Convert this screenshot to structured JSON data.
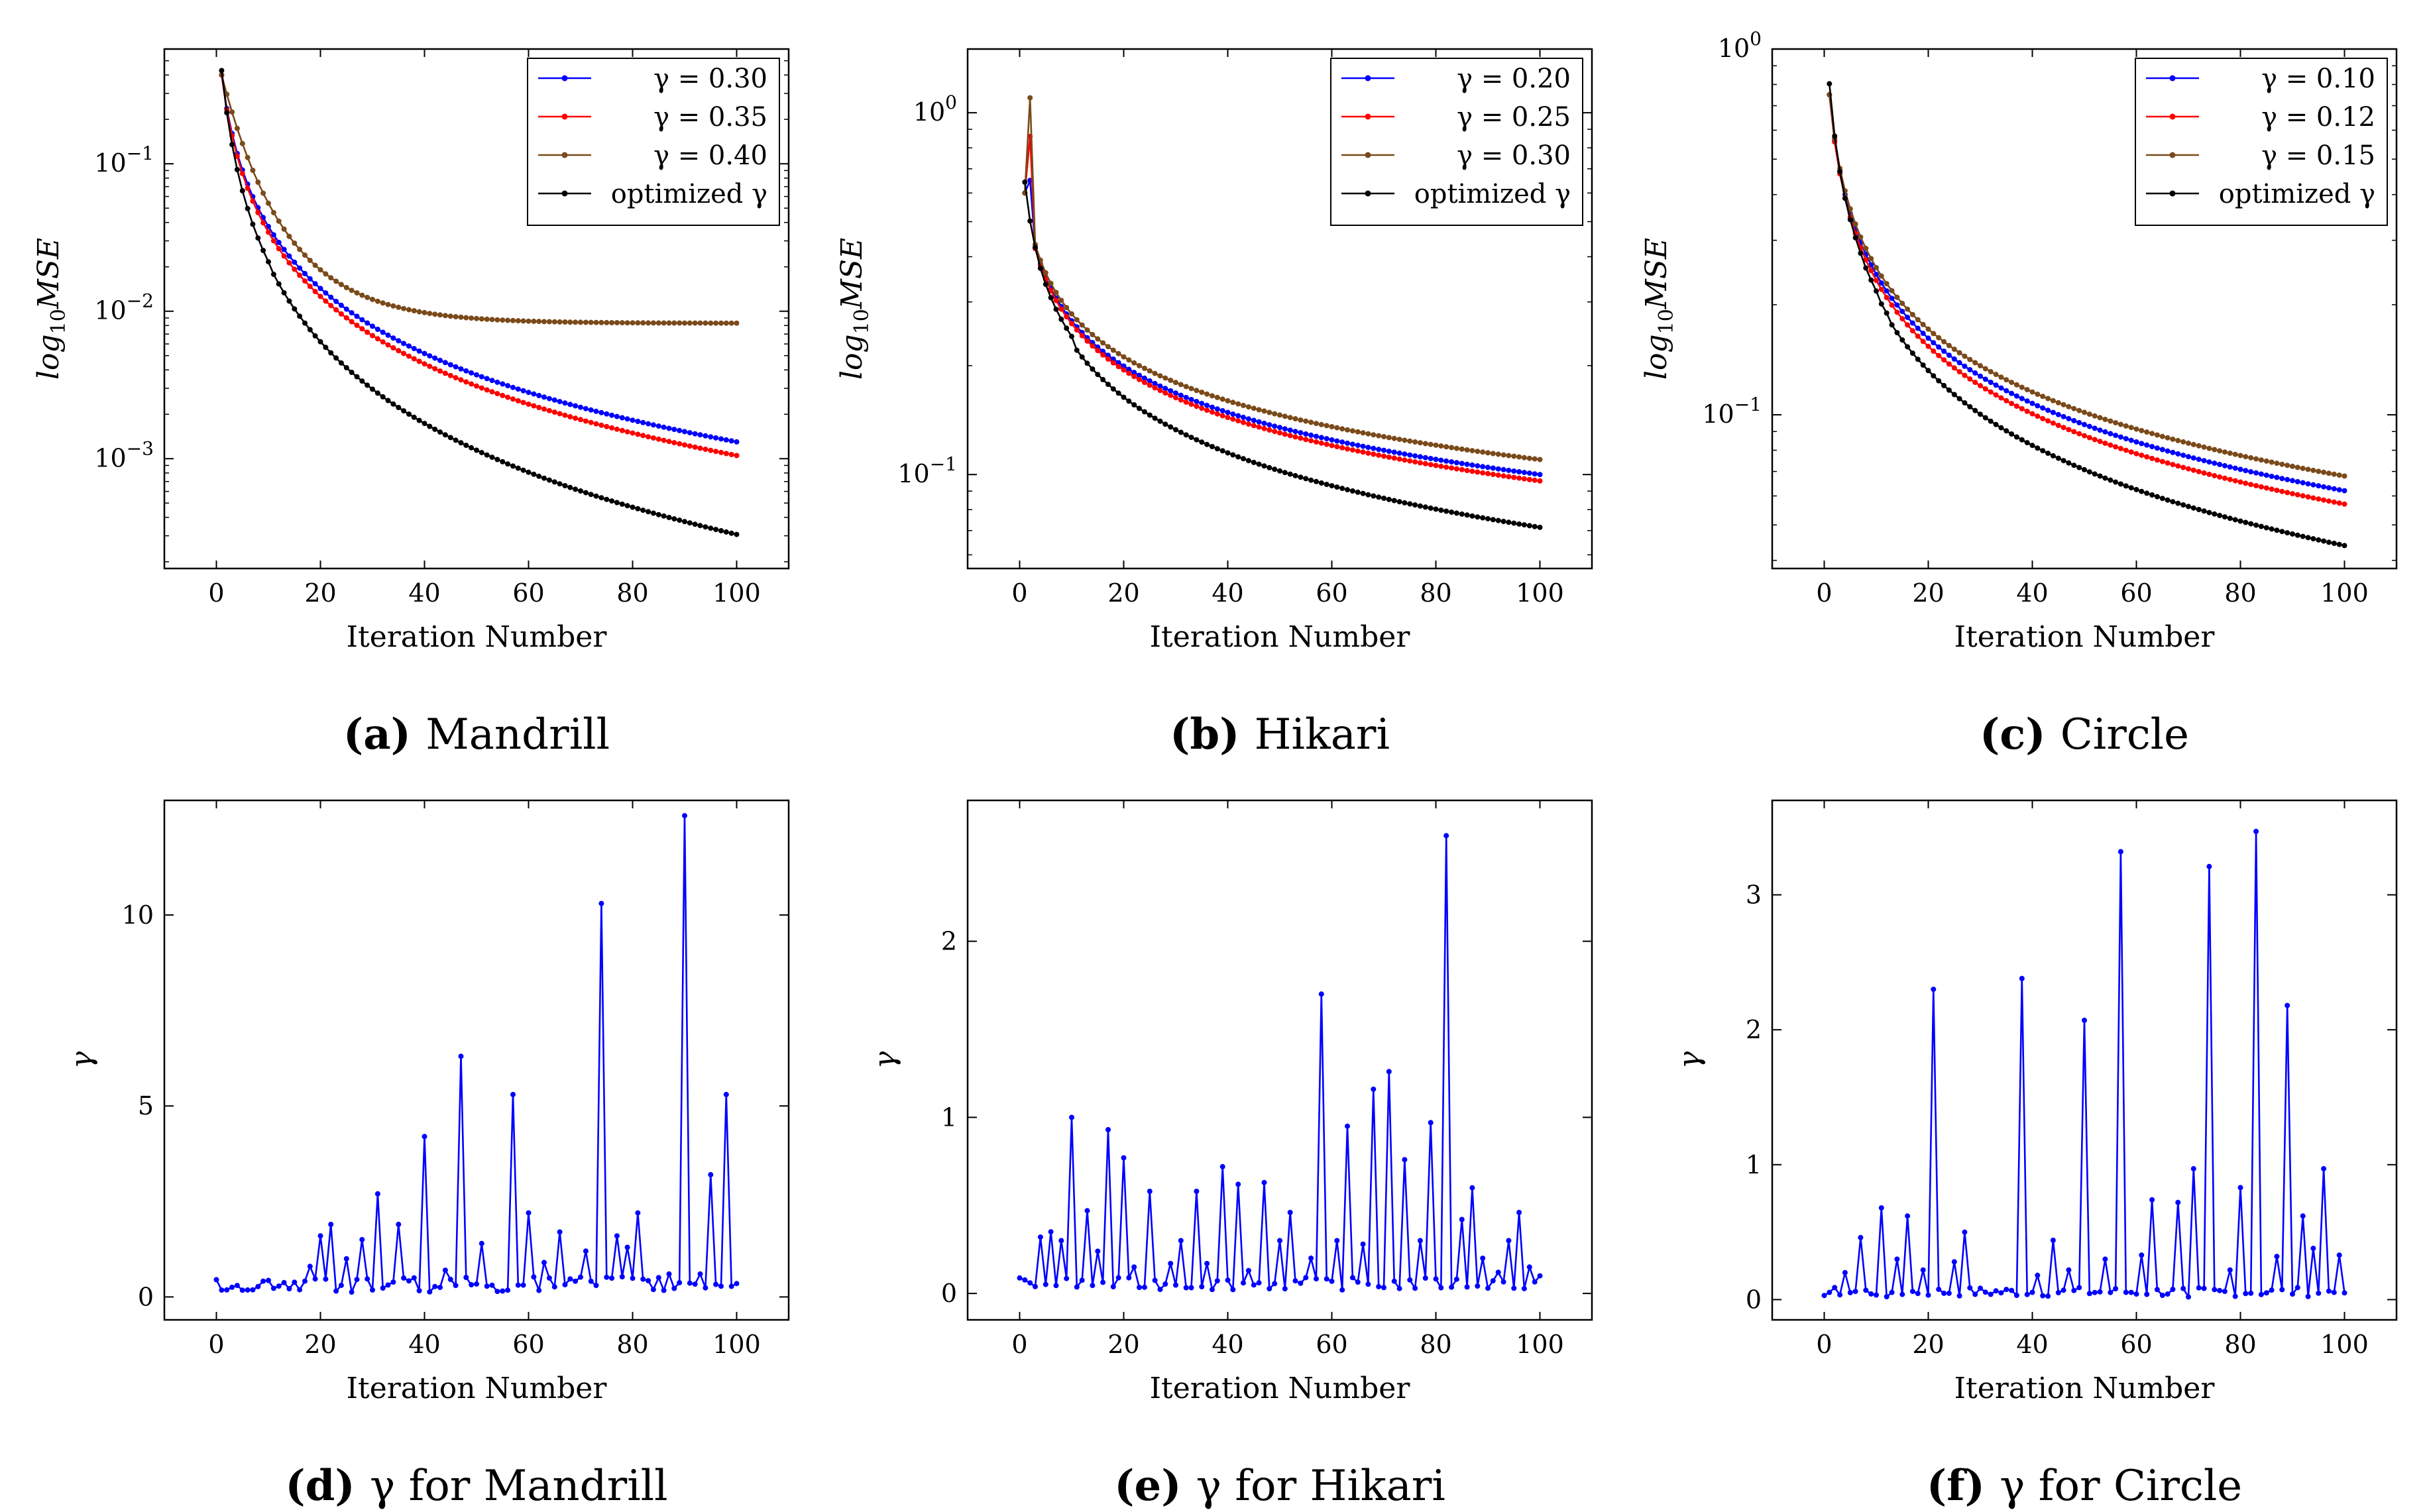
{
  "charts": [
    {
      "type": "line",
      "yscale": "log",
      "xlabel": "Iteration Number",
      "ylabel": "log10MSE",
      "xlim": [
        -10,
        110
      ],
      "ylim": [
        0.00018,
        0.6
      ],
      "xticks": [
        0,
        20,
        40,
        60,
        80,
        100
      ],
      "yticks": [
        0.001,
        0.01,
        0.1
      ],
      "ytick_labels": [
        "10^-3",
        "10^-2",
        "10^-1"
      ],
      "caption": {
        "letter": "(a)",
        "text": "Mandrill"
      },
      "legend": "top-right",
      "series": [
        {
          "name": "γ = 0.30",
          "color": "#0000ff",
          "y0": 0.4,
          "y100": 0.0013,
          "kind": "smooth",
          "knee": 2.0
        },
        {
          "name": "γ = 0.35",
          "color": "#ff0000",
          "y0": 0.4,
          "y100": 0.00105,
          "kind": "smooth",
          "knee": 2.0
        },
        {
          "name": "γ = 0.40",
          "color": "#7a4a1a",
          "y0": 0.4,
          "y100": 0.0083,
          "kind": "plateau",
          "knee": 8.0
        },
        {
          "name": "optimized γ",
          "color": "#000000",
          "y0": 0.4,
          "y100": 0.0003,
          "kind": "steps",
          "knee": 2.0
        }
      ]
    },
    {
      "type": "line",
      "yscale": "log",
      "xlabel": "Iteration Number",
      "ylabel": "log10MSE",
      "xlim": [
        -10,
        110
      ],
      "ylim": [
        0.055,
        1.5
      ],
      "xticks": [
        0,
        20,
        40,
        60,
        80,
        100
      ],
      "yticks": [
        0.1,
        1
      ],
      "ytick_labels": [
        "10^-1",
        "10^0"
      ],
      "caption": {
        "letter": "(b)",
        "text": "Hikari"
      },
      "legend": "top-right",
      "series": [
        {
          "name": "γ = 0.20",
          "color": "#0000ff",
          "y0": 0.6,
          "y100": 0.1,
          "kind": "smooth",
          "knee": 3.0,
          "spike": 0.65
        },
        {
          "name": "γ = 0.25",
          "color": "#ff0000",
          "y0": 0.6,
          "y100": 0.096,
          "kind": "smooth",
          "knee": 3.0,
          "spike": 0.86
        },
        {
          "name": "γ = 0.30",
          "color": "#7a4a1a",
          "y0": 0.6,
          "y100": 0.11,
          "kind": "smooth",
          "knee": 3.0,
          "spike": 1.1
        },
        {
          "name": "optimized γ",
          "color": "#000000",
          "y0": 0.6,
          "y100": 0.07,
          "kind": "steps",
          "knee": 3.0
        }
      ]
    },
    {
      "type": "line",
      "yscale": "log",
      "xlabel": "Iteration Number",
      "ylabel": "log10MSE",
      "xlim": [
        -10,
        110
      ],
      "ylim": [
        0.038,
        1.0
      ],
      "xticks": [
        0,
        20,
        40,
        60,
        80,
        100
      ],
      "yticks": [
        0.1,
        1
      ],
      "ytick_labels": [
        "10^-1",
        "10^0"
      ],
      "caption": {
        "letter": "(c)",
        "text": "Circle"
      },
      "legend": "top-right",
      "series": [
        {
          "name": "γ = 0.10",
          "color": "#0000ff",
          "y0": 0.75,
          "y100": 0.062,
          "kind": "smooth",
          "knee": 3.0
        },
        {
          "name": "γ = 0.12",
          "color": "#ff0000",
          "y0": 0.75,
          "y100": 0.057,
          "kind": "smooth",
          "knee": 3.0
        },
        {
          "name": "γ = 0.15",
          "color": "#7a4a1a",
          "y0": 0.75,
          "y100": 0.068,
          "kind": "smooth",
          "knee": 3.0
        },
        {
          "name": "optimized γ",
          "color": "#000000",
          "y0": 0.75,
          "y100": 0.043,
          "kind": "steps",
          "knee": 3.0
        }
      ]
    },
    {
      "type": "line",
      "yscale": "linear",
      "xlabel": "Iteration Number",
      "ylabel": "γ",
      "xlim": [
        -10,
        110
      ],
      "ylim": [
        -0.6,
        13.0
      ],
      "xticks": [
        0,
        20,
        40,
        60,
        80,
        100
      ],
      "yticks": [
        0,
        5,
        10
      ],
      "ytick_labels": [
        "0",
        "5",
        "10"
      ],
      "caption": {
        "letter": "(d)",
        "text": "γ for Mandrill"
      },
      "series": [
        {
          "name": "",
          "color": "#0000ff",
          "base": 0.3,
          "peaks": [
            [
              18,
              0.8
            ],
            [
              20,
              1.6
            ],
            [
              22,
              1.9
            ],
            [
              25,
              1.0
            ],
            [
              28,
              1.5
            ],
            [
              31,
              2.7
            ],
            [
              35,
              1.9
            ],
            [
              40,
              4.2
            ],
            [
              44,
              0.7
            ],
            [
              47,
              6.3
            ],
            [
              51,
              1.4
            ],
            [
              57,
              5.3
            ],
            [
              60,
              2.2
            ],
            [
              63,
              0.9
            ],
            [
              66,
              1.7
            ],
            [
              71,
              1.2
            ],
            [
              74,
              10.3
            ],
            [
              77,
              1.6
            ],
            [
              79,
              1.3
            ],
            [
              81,
              2.2
            ],
            [
              87,
              0.6
            ],
            [
              90,
              12.6
            ],
            [
              93,
              0.6
            ],
            [
              95,
              3.2
            ],
            [
              98,
              5.3
            ],
            [
              100,
              0.35
            ]
          ]
        }
      ]
    },
    {
      "type": "line",
      "yscale": "linear",
      "xlabel": "Iteration Number",
      "ylabel": "γ",
      "xlim": [
        -10,
        110
      ],
      "ylim": [
        -0.15,
        2.8
      ],
      "xticks": [
        0,
        20,
        40,
        60,
        80,
        100
      ],
      "yticks": [
        0,
        1,
        2
      ],
      "ytick_labels": [
        "0",
        "1",
        "2"
      ],
      "caption": {
        "letter": "(e)",
        "text": "γ for Hikari"
      },
      "series": [
        {
          "name": "",
          "color": "#0000ff",
          "base": 0.05,
          "peaks": [
            [
              4,
              0.32
            ],
            [
              6,
              0.35
            ],
            [
              8,
              0.3
            ],
            [
              10,
              1.0
            ],
            [
              13,
              0.47
            ],
            [
              15,
              0.24
            ],
            [
              17,
              0.93
            ],
            [
              20,
              0.77
            ],
            [
              22,
              0.15
            ],
            [
              25,
              0.58
            ],
            [
              29,
              0.17
            ],
            [
              31,
              0.3
            ],
            [
              34,
              0.58
            ],
            [
              36,
              0.17
            ],
            [
              39,
              0.72
            ],
            [
              42,
              0.62
            ],
            [
              44,
              0.13
            ],
            [
              47,
              0.63
            ],
            [
              50,
              0.3
            ],
            [
              52,
              0.46
            ],
            [
              56,
              0.2
            ],
            [
              58,
              1.7
            ],
            [
              61,
              0.3
            ],
            [
              63,
              0.95
            ],
            [
              66,
              0.28
            ],
            [
              68,
              1.16
            ],
            [
              71,
              1.26
            ],
            [
              74,
              0.76
            ],
            [
              77,
              0.3
            ],
            [
              79,
              0.97
            ],
            [
              82,
              2.6
            ],
            [
              85,
              0.42
            ],
            [
              87,
              0.6
            ],
            [
              89,
              0.2
            ],
            [
              92,
              0.12
            ],
            [
              94,
              0.3
            ],
            [
              96,
              0.46
            ],
            [
              98,
              0.15
            ],
            [
              100,
              0.1
            ]
          ]
        }
      ]
    },
    {
      "type": "line",
      "yscale": "linear",
      "xlabel": "Iteration Number",
      "ylabel": "γ",
      "xlim": [
        -10,
        110
      ],
      "ylim": [
        -0.15,
        3.7
      ],
      "xticks": [
        0,
        20,
        40,
        60,
        80,
        100
      ],
      "yticks": [
        0,
        1,
        2,
        3
      ],
      "ytick_labels": [
        "0",
        "1",
        "2",
        "3"
      ],
      "caption": {
        "letter": "(f)",
        "text": "γ for Circle"
      },
      "series": [
        {
          "name": "",
          "color": "#0000ff",
          "base": 0.05,
          "peaks": [
            [
              4,
              0.2
            ],
            [
              7,
              0.46
            ],
            [
              11,
              0.68
            ],
            [
              14,
              0.3
            ],
            [
              16,
              0.62
            ],
            [
              19,
              0.22
            ],
            [
              21,
              2.3
            ],
            [
              25,
              0.28
            ],
            [
              27,
              0.5
            ],
            [
              38,
              2.38
            ],
            [
              41,
              0.18
            ],
            [
              44,
              0.44
            ],
            [
              47,
              0.22
            ],
            [
              50,
              2.07
            ],
            [
              54,
              0.3
            ],
            [
              57,
              3.32
            ],
            [
              61,
              0.33
            ],
            [
              63,
              0.74
            ],
            [
              68,
              0.72
            ],
            [
              71,
              0.97
            ],
            [
              74,
              3.21
            ],
            [
              78,
              0.22
            ],
            [
              80,
              0.83
            ],
            [
              83,
              3.47
            ],
            [
              87,
              0.32
            ],
            [
              89,
              2.18
            ],
            [
              92,
              0.62
            ],
            [
              94,
              0.38
            ],
            [
              96,
              0.97
            ],
            [
              99,
              0.33
            ],
            [
              100,
              0.05
            ]
          ]
        }
      ]
    }
  ]
}
